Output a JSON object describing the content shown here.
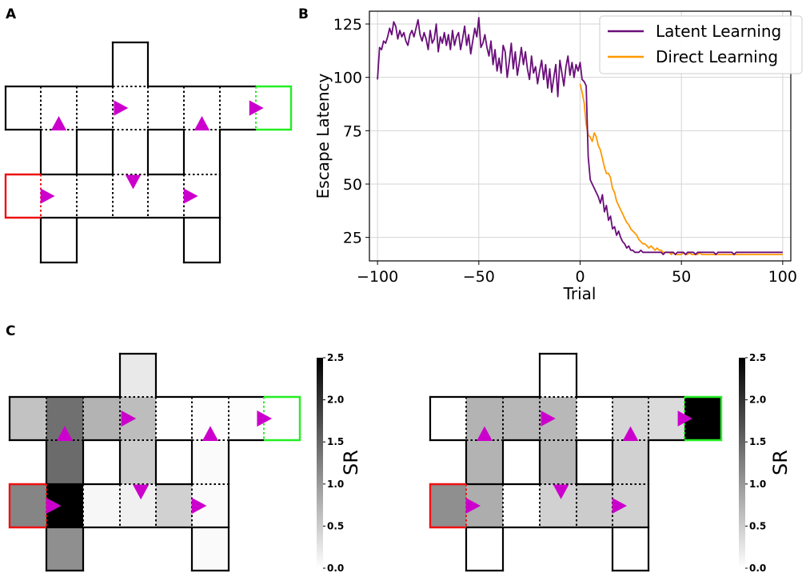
{
  "panels": {
    "a": "A",
    "b": "B",
    "c": "C"
  },
  "colors": {
    "agent": "#cc00cc",
    "start": "#ee1111",
    "goal": "#22ee22",
    "latent": "#6a0e7a",
    "direct": "#ff9900"
  },
  "chart_data": {
    "type": "line",
    "xlabel": "Trial",
    "ylabel": "Escape Latency",
    "xlim": [
      -104,
      104
    ],
    "ylim": [
      14,
      131
    ],
    "xticks": [
      -100,
      -50,
      0,
      50,
      100
    ],
    "xtick_labels": [
      "−100",
      "−50",
      "0",
      "50",
      "100"
    ],
    "yticks": [
      25,
      50,
      75,
      100,
      125
    ],
    "grid": true,
    "legend_position": "top-right",
    "series": [
      {
        "name": "Latent Learning",
        "color": "#6a0e7a",
        "x": [
          -100,
          -99,
          -98,
          -97,
          -96,
          -95,
          -94,
          -93,
          -92,
          -91,
          -90,
          -89,
          -88,
          -87,
          -86,
          -85,
          -84,
          -83,
          -82,
          -81,
          -80,
          -79,
          -78,
          -77,
          -76,
          -75,
          -74,
          -73,
          -72,
          -71,
          -70,
          -69,
          -68,
          -67,
          -66,
          -65,
          -64,
          -63,
          -62,
          -61,
          -60,
          -59,
          -58,
          -57,
          -56,
          -55,
          -54,
          -53,
          -52,
          -51,
          -50,
          -49,
          -48,
          -47,
          -46,
          -45,
          -44,
          -43,
          -42,
          -41,
          -40,
          -39,
          -38,
          -37,
          -36,
          -35,
          -34,
          -33,
          -32,
          -31,
          -30,
          -29,
          -28,
          -27,
          -26,
          -25,
          -24,
          -23,
          -22,
          -21,
          -20,
          -19,
          -18,
          -17,
          -16,
          -15,
          -14,
          -13,
          -12,
          -11,
          -10,
          -9,
          -8,
          -7,
          -6,
          -5,
          -4,
          -3,
          -2,
          -1,
          0,
          1,
          2,
          3,
          4,
          5,
          6,
          7,
          8,
          9,
          10,
          11,
          12,
          13,
          14,
          15,
          16,
          17,
          18,
          19,
          20,
          21,
          22,
          23,
          24,
          25,
          26,
          27,
          28,
          29,
          30,
          31,
          32,
          33,
          34,
          35,
          36,
          37,
          38,
          39,
          40,
          41,
          42,
          43,
          44,
          45,
          46,
          47,
          48,
          49,
          50,
          51,
          52,
          53,
          54,
          55,
          56,
          57,
          58,
          59,
          60,
          61,
          62,
          63,
          64,
          65,
          66,
          67,
          68,
          69,
          70,
          71,
          72,
          73,
          74,
          75,
          76,
          77,
          78,
          79,
          80,
          81,
          82,
          83,
          84,
          85,
          86,
          87,
          88,
          89,
          90,
          91,
          92,
          93,
          94,
          95,
          96,
          97,
          98,
          99,
          100
        ],
        "y": [
          99,
          114,
          113,
          117,
          116,
          119,
          123,
          120,
          126,
          124,
          118,
          122,
          119,
          121,
          117,
          115,
          120,
          122,
          119,
          123,
          127,
          120,
          117,
          121,
          118,
          113,
          122,
          116,
          118,
          125,
          112,
          119,
          116,
          121,
          115,
          120,
          113,
          122,
          115,
          119,
          121,
          113,
          118,
          124,
          115,
          120,
          111,
          117,
          123,
          119,
          128,
          114,
          116,
          120,
          114,
          110,
          117,
          106,
          113,
          103,
          109,
          102,
          115,
          112,
          100,
          107,
          116,
          104,
          112,
          101,
          107,
          114,
          106,
          112,
          104,
          99,
          110,
          102,
          105,
          97,
          103,
          108,
          99,
          106,
          95,
          104,
          93,
          100,
          106,
          91,
          108,
          102,
          96,
          105,
          110,
          101,
          107,
          100,
          106,
          103,
          107,
          99,
          98,
          96,
          63,
          52,
          50,
          48,
          46,
          44,
          41,
          45,
          37,
          40,
          33,
          35,
          29,
          30,
          26,
          28,
          25,
          23,
          22,
          20,
          21,
          19,
          19,
          18,
          18,
          18,
          19,
          18,
          18,
          18,
          18,
          18,
          18,
          18,
          18,
          18,
          18,
          17,
          18,
          18,
          18,
          18,
          18,
          17,
          18,
          18,
          18,
          18,
          17,
          18,
          18,
          18,
          18,
          17,
          18,
          18,
          18,
          18,
          18,
          18,
          18,
          18,
          18,
          17,
          18,
          18,
          18,
          18,
          18,
          18,
          18,
          18,
          17,
          18,
          18,
          18,
          18,
          18,
          18,
          18,
          18,
          18,
          18,
          18,
          18,
          18,
          18,
          18,
          18,
          18,
          18,
          18,
          18,
          18,
          18,
          18,
          18
        ]
      },
      {
        "name": "Direct Learning",
        "color": "#ff9900",
        "x": [
          0,
          1,
          2,
          3,
          4,
          5,
          6,
          7,
          8,
          9,
          10,
          11,
          12,
          13,
          14,
          15,
          16,
          17,
          18,
          19,
          20,
          21,
          22,
          23,
          24,
          25,
          26,
          27,
          28,
          29,
          30,
          31,
          32,
          33,
          34,
          35,
          36,
          37,
          38,
          39,
          40,
          41,
          42,
          43,
          44,
          45,
          46,
          47,
          48,
          49,
          50,
          51,
          52,
          53,
          54,
          55,
          56,
          57,
          58,
          59,
          60,
          61,
          62,
          63,
          64,
          65,
          66,
          67,
          68,
          69,
          70,
          71,
          72,
          73,
          74,
          75,
          76,
          77,
          78,
          79,
          80,
          81,
          82,
          83,
          84,
          85,
          86,
          87,
          88,
          89,
          90,
          91,
          92,
          93,
          94,
          95,
          96,
          97,
          98,
          99,
          100
        ],
        "y": [
          97,
          93,
          88,
          78,
          73,
          72,
          70,
          74,
          72,
          68,
          66,
          62,
          58,
          55,
          55,
          53,
          48,
          46,
          42,
          40,
          38,
          36,
          34,
          32,
          31,
          29,
          28,
          27,
          26,
          24,
          23,
          22,
          22,
          21,
          20,
          21,
          20,
          19,
          20,
          19,
          19,
          18,
          18,
          18,
          18,
          17,
          18,
          17,
          17,
          17,
          17,
          18,
          17,
          17,
          18,
          17,
          17,
          17,
          17,
          18,
          17,
          17,
          17,
          17,
          17,
          17,
          17,
          17,
          17,
          17,
          17,
          17,
          17,
          17,
          17,
          17,
          17,
          17,
          17,
          17,
          17,
          17,
          17,
          17,
          17,
          17,
          17,
          17,
          17,
          17,
          17,
          17,
          17,
          17,
          17,
          17,
          17,
          17,
          17,
          17,
          17
        ]
      }
    ],
    "heatmaps": [
      {
        "name": "SR left",
        "colorbar_label": "SR",
        "vmin": 0.0,
        "vmax": 2.5,
        "colorbar_ticks": [
          "0.0",
          "0.5",
          "1.0",
          "1.5",
          "2.0",
          "2.5"
        ],
        "cells": [
          {
            "id": "top-col",
            "value": 0.22
          },
          {
            "id": "r1c0",
            "value": 0.6
          },
          {
            "id": "r1c1",
            "value": 1.4
          },
          {
            "id": "r1c2",
            "value": 0.75
          },
          {
            "id": "r1c3",
            "value": 0.65
          },
          {
            "id": "r1c4",
            "value": 0.0
          },
          {
            "id": "r1c5",
            "value": 0.02
          },
          {
            "id": "r1c6",
            "value": 0.02
          },
          {
            "id": "r1c7",
            "value": 0.0
          },
          {
            "id": "r2c1",
            "value": 1.45
          },
          {
            "id": "r2c3",
            "value": 0.5
          },
          {
            "id": "r2c5",
            "value": 0.05
          },
          {
            "id": "r3c0",
            "value": 1.2
          },
          {
            "id": "r3c1",
            "value": 2.5
          },
          {
            "id": "r3c2",
            "value": 0.08
          },
          {
            "id": "r3c3",
            "value": 0.15
          },
          {
            "id": "r3c4",
            "value": 0.45
          },
          {
            "id": "r3c5",
            "value": 0.05
          },
          {
            "id": "r4c1",
            "value": 1.1
          },
          {
            "id": "r4c5",
            "value": 0.05
          }
        ]
      },
      {
        "name": "SR right",
        "colorbar_label": "SR",
        "vmin": 0.0,
        "vmax": 2.5,
        "colorbar_ticks": [
          "0.0",
          "0.5",
          "1.0",
          "1.5",
          "2.0",
          "2.5"
        ],
        "cells": [
          {
            "id": "top-col",
            "value": 0.0
          },
          {
            "id": "r1c0",
            "value": 0.0
          },
          {
            "id": "r1c1",
            "value": 0.75
          },
          {
            "id": "r1c2",
            "value": 0.7
          },
          {
            "id": "r1c3",
            "value": 0.7
          },
          {
            "id": "r1c4",
            "value": 0.0
          },
          {
            "id": "r1c5",
            "value": 0.4
          },
          {
            "id": "r1c6",
            "value": 0.35
          },
          {
            "id": "r1c7",
            "value": 2.5
          },
          {
            "id": "r2c1",
            "value": 0.75
          },
          {
            "id": "r2c3",
            "value": 0.7
          },
          {
            "id": "r2c5",
            "value": 0.45
          },
          {
            "id": "r3c0",
            "value": 1.1
          },
          {
            "id": "r3c1",
            "value": 0.8
          },
          {
            "id": "r3c2",
            "value": 0.0
          },
          {
            "id": "r3c3",
            "value": 0.45
          },
          {
            "id": "r3c4",
            "value": 0.5
          },
          {
            "id": "r3c5",
            "value": 0.45
          },
          {
            "id": "r4c1",
            "value": 0.0
          },
          {
            "id": "r4c5",
            "value": 0.0
          }
        ]
      }
    ]
  }
}
